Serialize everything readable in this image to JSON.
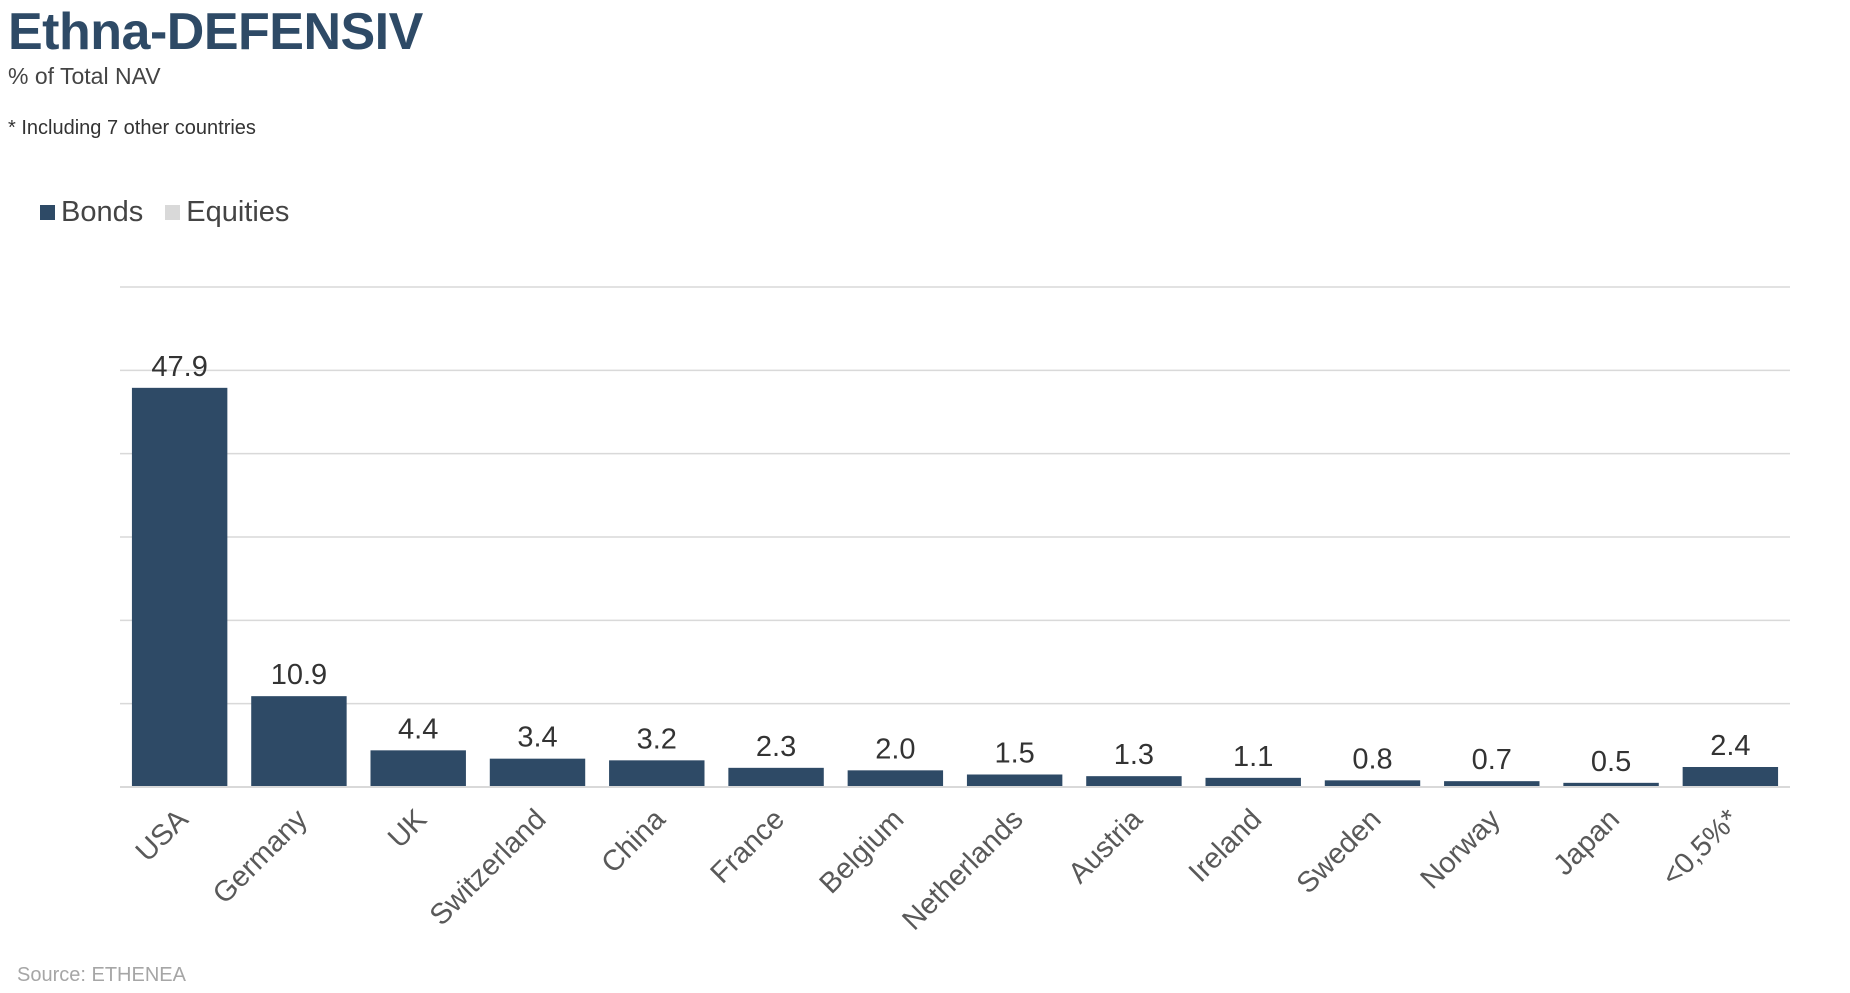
{
  "header": {
    "title": "Ethna-DEFENSIV",
    "subtitle": "% of Total NAV",
    "footnote": "* Including 7 other countries"
  },
  "legend": {
    "items": [
      {
        "label": "Bonds",
        "color": "#2e4a66"
      },
      {
        "label": "Equities",
        "color": "#d9d9d9"
      }
    ]
  },
  "footer": {
    "source": "Source: ETHENEA"
  },
  "chart_data": {
    "type": "bar",
    "title": "Ethna-DEFENSIV",
    "subtitle": "% of Total NAV",
    "xlabel": "",
    "ylabel": "",
    "categories": [
      "USA",
      "Germany",
      "UK",
      "Switzerland",
      "China",
      "France",
      "Belgium",
      "Netherlands",
      "Austria",
      "Ireland",
      "Sweden",
      "Norway",
      "Japan",
      "<0,5%*"
    ],
    "series": [
      {
        "name": "Bonds",
        "color": "#2e4a66",
        "values": [
          47.9,
          10.9,
          4.4,
          3.4,
          3.2,
          2.3,
          2.0,
          1.5,
          1.3,
          1.1,
          0.8,
          0.7,
          0.5,
          2.4
        ]
      },
      {
        "name": "Equities",
        "color": "#d9d9d9",
        "values": [
          0,
          0,
          0,
          0,
          0,
          0,
          0,
          0,
          0,
          0,
          0,
          0,
          0,
          0
        ]
      }
    ],
    "data_labels": [
      "47.9",
      "10.9",
      "4.4",
      "3.4",
      "3.2",
      "2.3",
      "2.0",
      "1.5",
      "1.3",
      "1.1",
      "0.8",
      "0.7",
      "0.5",
      "2.4"
    ],
    "ylim": [
      0,
      60
    ],
    "grid": true,
    "y_tick_labels_visible": false,
    "legend_position": "top-left"
  }
}
